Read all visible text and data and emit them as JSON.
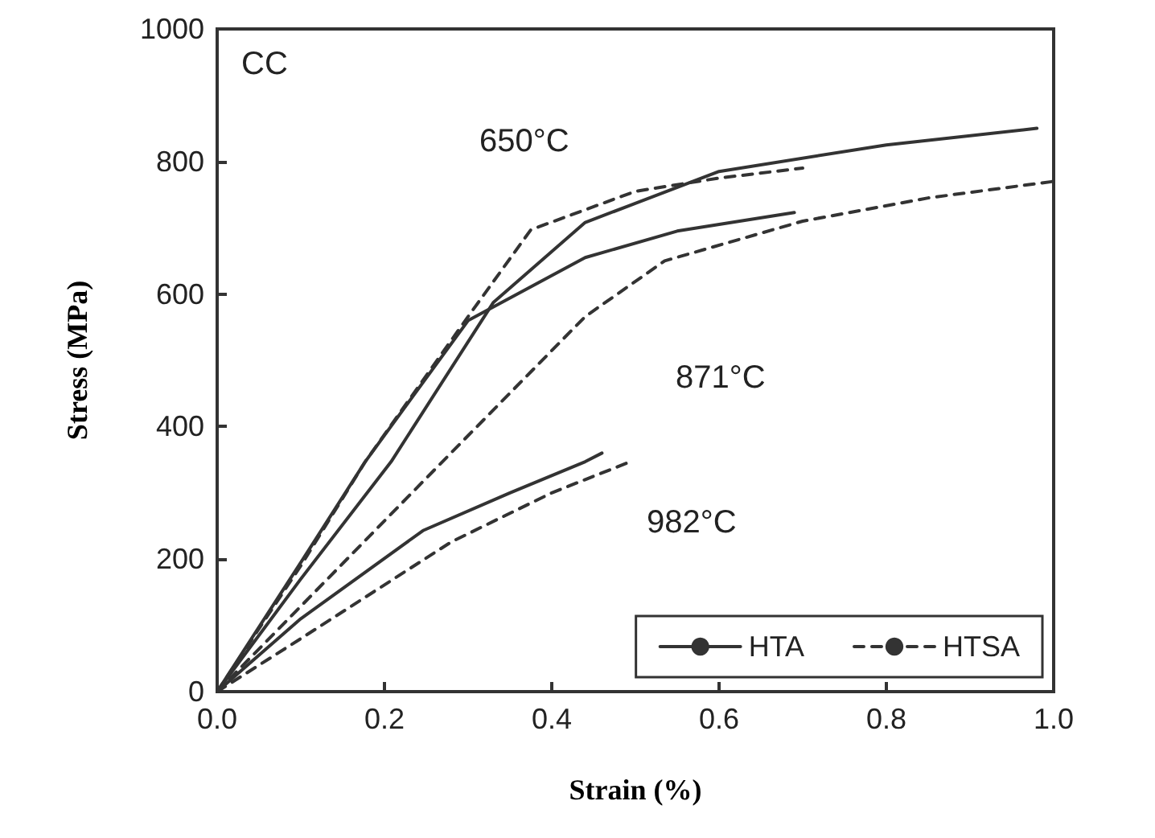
{
  "chart_data": {
    "type": "line",
    "xlabel": "Strain (%)",
    "ylabel": "Stress (MPa)",
    "annotations": [
      "CC",
      "650°C",
      "871°C",
      "982°C"
    ],
    "xlim": [
      0,
      1
    ],
    "ylim": [
      0,
      1000
    ],
    "xticks": [
      {
        "value": 0,
        "label": "0.0"
      },
      {
        "value": 0.2,
        "label": "0.2"
      },
      {
        "value": 0.4,
        "label": "0.4"
      },
      {
        "value": 0.6,
        "label": "0.6"
      },
      {
        "value": 0.8,
        "label": "0.8"
      },
      {
        "value": 1,
        "label": "1.0"
      }
    ],
    "yticks": [
      0,
      200,
      400,
      600,
      800,
      1000
    ],
    "grid": false,
    "legend": "bottom right",
    "marker": "none",
    "series": [
      {
        "name": "HTA",
        "color": "#333333",
        "line_style": "solid",
        "x": [
          0,
          0.1,
          0.208,
          0.33,
          0.44,
          0.6,
          0.8,
          0.98
        ],
        "values": [
          0,
          170,
          347,
          587,
          708,
          785,
          825,
          850
        ]
      },
      {
        "name": "HTSA",
        "color": "#333333",
        "line_style": "dashed",
        "x": [
          0,
          0.1,
          0.177,
          0.3,
          0.375,
          0.5,
          0.6,
          0.7
        ],
        "values": [
          0,
          190,
          347,
          566,
          697,
          755,
          775,
          790
        ]
      },
      {
        "color": "#333333",
        "line_style": "solid",
        "x": [
          0,
          0.1,
          0.177,
          0.3,
          0.44,
          0.55,
          0.69
        ],
        "values": [
          0,
          195,
          347,
          560,
          655,
          695,
          723
        ]
      },
      {
        "color": "#333333",
        "line_style": "dashed",
        "x": [
          0,
          0.26,
          0.44,
          0.535,
          0.7,
          0.85,
          1.0
        ],
        "values": [
          0,
          335,
          566,
          650,
          710,
          745,
          770
        ]
      },
      {
        "color": "#333333",
        "line_style": "solid",
        "x": [
          0,
          0.1,
          0.246,
          0.35,
          0.44,
          0.46
        ],
        "values": [
          0,
          110,
          243,
          300,
          347,
          360
        ]
      },
      {
        "color": "#333333",
        "line_style": "dashed",
        "x": [
          0,
          0.1,
          0.28,
          0.4,
          0.49
        ],
        "values": [
          0,
          80,
          226,
          300,
          345
        ]
      }
    ]
  }
}
